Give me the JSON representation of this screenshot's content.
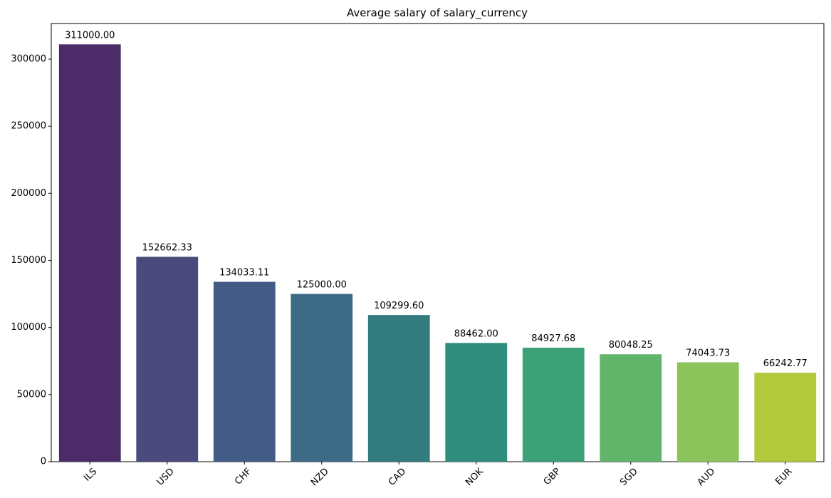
{
  "chart_data": {
    "type": "bar",
    "title": "Average salary of salary_currency",
    "xlabel": "",
    "ylabel": "",
    "categories": [
      "ILS",
      "USD",
      "CHF",
      "NZD",
      "CAD",
      "NOK",
      "GBP",
      "SGD",
      "AUD",
      "EUR"
    ],
    "values": [
      311000.0,
      152662.33,
      134033.11,
      125000.0,
      109299.6,
      88462.0,
      84927.68,
      80048.25,
      74043.73,
      66242.77
    ],
    "value_labels": [
      "311000.00",
      "152662.33",
      "134033.11",
      "125000.00",
      "109299.60",
      "88462.00",
      "84927.68",
      "80048.25",
      "74043.73",
      "66242.77"
    ],
    "colors": [
      "#4b2c69",
      "#4a4a7d",
      "#435c85",
      "#3d6b85",
      "#327c80",
      "#2f8d7c",
      "#3da177",
      "#62b46b",
      "#8bc45a",
      "#b2c93b"
    ],
    "yticks": [
      0,
      50000,
      100000,
      150000,
      200000,
      250000,
      300000
    ],
    "ylim": [
      0,
      326550
    ],
    "xtick_rotation": 45,
    "grid": false,
    "legend": "none"
  }
}
